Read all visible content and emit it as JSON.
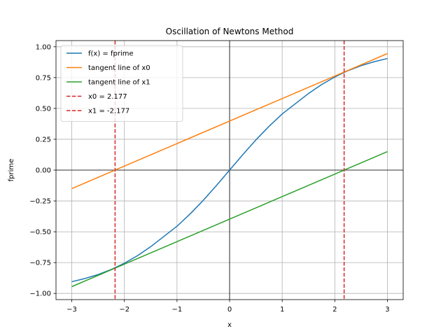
{
  "chart_data": {
    "type": "line",
    "title": "Oscillation of Newtons Method",
    "xlabel": "x",
    "ylabel": "fprime",
    "xlim": [
      -3.3,
      3.3
    ],
    "ylim": [
      -1.05,
      1.05
    ],
    "xticks": [
      -3,
      -2,
      -1,
      0,
      1,
      2,
      3
    ],
    "xtick_labels": [
      "−3",
      "−2",
      "−1",
      "0",
      "1",
      "2",
      "3"
    ],
    "yticks": [
      -1.0,
      -0.75,
      -0.5,
      -0.25,
      0.0,
      0.25,
      0.5,
      0.75,
      1.0
    ],
    "ytick_labels": [
      "−1.00",
      "−0.75",
      "−0.50",
      "−0.25",
      "0.00",
      "0.25",
      "0.50",
      "0.75",
      "1.00"
    ],
    "grid": true,
    "legend_position": "top-left",
    "series": [
      {
        "name": "f(x) = fprime",
        "color": "#1f77b4",
        "style": "solid",
        "x": [
          -3.0,
          -2.75,
          -2.5,
          -2.25,
          -2.0,
          -1.75,
          -1.5,
          -1.25,
          -1.0,
          -0.75,
          -0.5,
          -0.25,
          0.0,
          0.25,
          0.5,
          0.75,
          1.0,
          1.25,
          1.5,
          1.75,
          2.0,
          2.25,
          2.5,
          2.75,
          3.0
        ],
        "y": [
          -0.905,
          -0.879,
          -0.847,
          -0.806,
          -0.755,
          -0.694,
          -0.621,
          -0.538,
          -0.455,
          -0.355,
          -0.245,
          -0.125,
          0.0,
          0.125,
          0.245,
          0.355,
          0.455,
          0.538,
          0.621,
          0.694,
          0.755,
          0.806,
          0.847,
          0.879,
          0.905
        ]
      },
      {
        "name": "tangent line of x0",
        "color": "#ff7f0e",
        "style": "solid",
        "x": [
          -3.0,
          3.0
        ],
        "y": [
          -0.15,
          0.945
        ]
      },
      {
        "name": "tangent line of x1",
        "color": "#2ca02c",
        "style": "solid",
        "x": [
          -3.0,
          3.0
        ],
        "y": [
          -0.945,
          0.15
        ]
      },
      {
        "name": "x0 = 2.177",
        "color": "#d62728",
        "style": "dashed",
        "vline": 2.177
      },
      {
        "name": "x1 = -2.177",
        "color": "#d62728",
        "style": "dashed",
        "vline": -2.177
      }
    ]
  }
}
